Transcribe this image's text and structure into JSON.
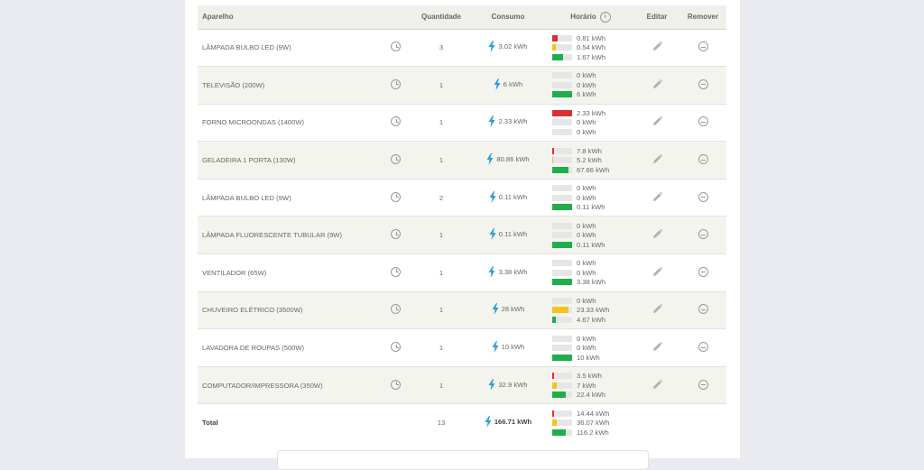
{
  "table": {
    "headers": {
      "name": "Aparelho",
      "quantity": "Quantidade",
      "consumption": "Consumo",
      "schedule": "Horário",
      "edit": "Editar",
      "remove": "Remover"
    },
    "rows": [
      {
        "name": "LÂMPADA BULBO LED (9W)",
        "quantity": "3",
        "consumption": "3.02 kWh",
        "bars": [
          {
            "color": "red",
            "level": 0.27,
            "value": "0.81 kWh"
          },
          {
            "color": "yellow",
            "level": 0.18,
            "value": "0.54 kWh"
          },
          {
            "color": "green",
            "level": 0.55,
            "value": "1.67 kWh"
          }
        ]
      },
      {
        "name": "TELEVISÃO (200W)",
        "quantity": "1",
        "consumption": "6 kWh",
        "bars": [
          {
            "color": "red",
            "level": 0,
            "value": "0 kWh"
          },
          {
            "color": "yellow",
            "level": 0,
            "value": "0 kWh"
          },
          {
            "color": "green",
            "level": 1,
            "value": "6 kWh"
          }
        ]
      },
      {
        "name": "FORNO MICROONDAS (1400W)",
        "quantity": "1",
        "consumption": "2.33 kWh",
        "bars": [
          {
            "color": "red",
            "level": 1,
            "value": "2.33 kWh"
          },
          {
            "color": "yellow",
            "level": 0,
            "value": "0 kWh"
          },
          {
            "color": "green",
            "level": 0,
            "value": "0 kWh"
          }
        ]
      },
      {
        "name": "GELADEIRA 1 PORTA (130W)",
        "quantity": "1",
        "consumption": "80.86 kWh",
        "bars": [
          {
            "color": "red",
            "level": 0.1,
            "value": "7.8 kWh"
          },
          {
            "color": "yellow",
            "level": 0.06,
            "value": "5.2 kWh"
          },
          {
            "color": "green",
            "level": 0.84,
            "value": "67.86 kWh"
          }
        ]
      },
      {
        "name": "LÂMPADA BULBO LED (9W)",
        "quantity": "2",
        "consumption": "0.11 kWh",
        "bars": [
          {
            "color": "red",
            "level": 0,
            "value": "0 kWh"
          },
          {
            "color": "yellow",
            "level": 0,
            "value": "0 kWh"
          },
          {
            "color": "green",
            "level": 1,
            "value": "0.11 kWh"
          }
        ]
      },
      {
        "name": "LÂMPADA FLUORESCENTE TUBULAR (9W)",
        "quantity": "1",
        "consumption": "0.11 kWh",
        "bars": [
          {
            "color": "red",
            "level": 0,
            "value": "0 kWh"
          },
          {
            "color": "yellow",
            "level": 0,
            "value": "0 kWh"
          },
          {
            "color": "green",
            "level": 1,
            "value": "0.11 kWh"
          }
        ]
      },
      {
        "name": "VENTILADOR (65W)",
        "quantity": "1",
        "consumption": "3.38 kWh",
        "bars": [
          {
            "color": "red",
            "level": 0,
            "value": "0 kWh"
          },
          {
            "color": "yellow",
            "level": 0,
            "value": "0 kWh"
          },
          {
            "color": "green",
            "level": 1,
            "value": "3.38 kWh"
          }
        ]
      },
      {
        "name": "CHUVEIRO ELÉTRICO (3500W)",
        "quantity": "1",
        "consumption": "28 kWh",
        "bars": [
          {
            "color": "red",
            "level": 0,
            "value": "0 kWh"
          },
          {
            "color": "yellow",
            "level": 0.83,
            "value": "23.33 kWh"
          },
          {
            "color": "green",
            "level": 0.17,
            "value": "4.67 kWh"
          }
        ]
      },
      {
        "name": "LAVADORA DE ROUPAS (500W)",
        "quantity": "1",
        "consumption": "10 kWh",
        "bars": [
          {
            "color": "red",
            "level": 0,
            "value": "0 kWh"
          },
          {
            "color": "yellow",
            "level": 0,
            "value": "0 kWh"
          },
          {
            "color": "green",
            "level": 1,
            "value": "10 kWh"
          }
        ]
      },
      {
        "name": "COMPUTADOR/IMPRESSORA (350W)",
        "quantity": "1",
        "consumption": "32.9 kWh",
        "bars": [
          {
            "color": "red",
            "level": 0.11,
            "value": "3.5 kWh"
          },
          {
            "color": "yellow",
            "level": 0.21,
            "value": "7 kWh"
          },
          {
            "color": "green",
            "level": 0.68,
            "value": "22.4 kWh"
          }
        ]
      }
    ],
    "total": {
      "label": "Total",
      "quantity": "13",
      "consumption": "166.71 kWh",
      "bars": [
        {
          "color": "red",
          "level": 0.09,
          "value": "14.44 kWh"
        },
        {
          "color": "yellow",
          "level": 0.22,
          "value": "36.07 kWh"
        },
        {
          "color": "green",
          "level": 0.7,
          "value": "116.2 kWh"
        }
      ]
    }
  },
  "colors": {
    "red": "#d9312b",
    "yellow": "#f5c518",
    "green": "#1fae4b",
    "bolt": "#2a9fd8"
  },
  "icons": {
    "schedule": "clock-icon",
    "consumption": "lightning-bolt-icon",
    "edit": "pencil-icon",
    "remove": "minus-circle-icon",
    "info": "info-icon"
  }
}
